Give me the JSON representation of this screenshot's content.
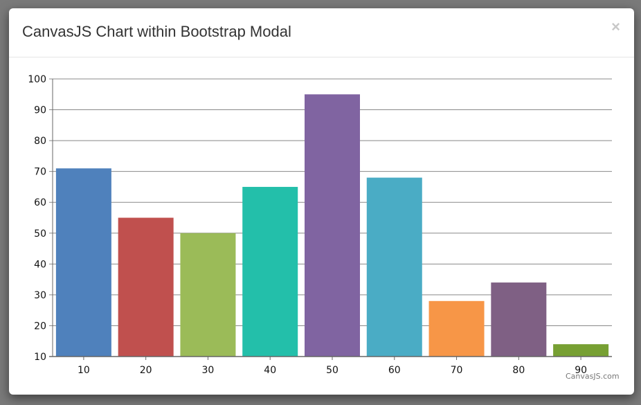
{
  "modal": {
    "title": "CanvasJS Chart within Bootstrap Modal",
    "close_label": "×"
  },
  "credit": "CanvasJS.com",
  "chart_data": {
    "type": "bar",
    "title": "",
    "xlabel": "",
    "ylabel": "",
    "categories": [
      "10",
      "20",
      "30",
      "40",
      "50",
      "60",
      "70",
      "80",
      "90"
    ],
    "values": [
      71,
      55,
      50,
      65,
      95,
      68,
      28,
      34,
      14
    ],
    "colors": [
      "#4F81BC",
      "#C0504E",
      "#9BBB58",
      "#23BFAA",
      "#8064A1",
      "#4AACC5",
      "#F79647",
      "#7F6084",
      "#77A033"
    ],
    "ylim": [
      10,
      100
    ],
    "yticks": [
      10,
      20,
      30,
      40,
      50,
      60,
      70,
      80,
      90,
      100
    ],
    "grid": true,
    "legend": null
  }
}
